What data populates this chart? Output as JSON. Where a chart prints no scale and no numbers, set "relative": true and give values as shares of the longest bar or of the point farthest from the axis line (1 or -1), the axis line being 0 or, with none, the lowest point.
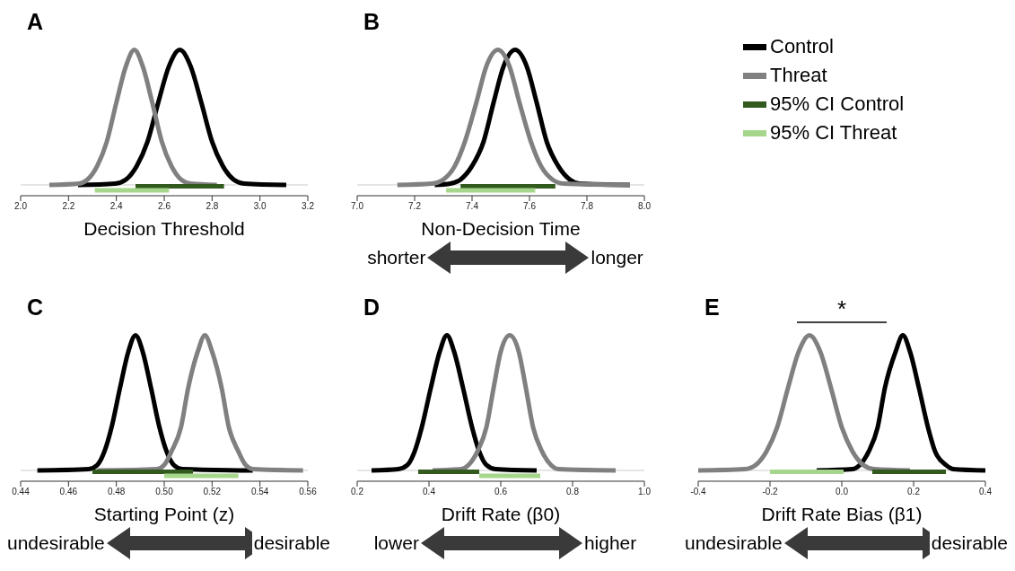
{
  "chart_data": [
    {
      "type": "line",
      "title": "A",
      "xlabel": "Decision Threshold",
      "relative": true,
      "xlim": [
        2.0,
        3.2
      ],
      "xticks": [
        {
          "value": 2.0,
          "label": "2.0"
        },
        2.2,
        2.4,
        2.6,
        2.8,
        {
          "value": 3.0,
          "label": "3.0"
        },
        3.2
      ],
      "series": [
        {
          "color": "#000000",
          "x": [
            2.24,
            2.395,
            2.44,
            2.485,
            2.53,
            2.575,
            2.62,
            2.665,
            2.71,
            2.755,
            2.8,
            2.845,
            2.89,
            2.935,
            3.11
          ],
          "values": [
            0,
            0.01,
            0.04,
            0.14,
            0.32,
            0.61,
            0.88,
            1,
            0.88,
            0.61,
            0.32,
            0.14,
            0.04,
            0.01,
            0
          ]
        },
        {
          "color": "#808080",
          "x": [
            2.12,
            2.244,
            2.28,
            2.32,
            2.36,
            2.4,
            2.44,
            2.475,
            2.51,
            2.55,
            2.59,
            2.63,
            2.67,
            2.71,
            2.82
          ],
          "values": [
            0,
            0.01,
            0.04,
            0.14,
            0.32,
            0.61,
            0.88,
            1,
            0.88,
            0.61,
            0.32,
            0.14,
            0.04,
            0.01,
            0
          ]
        },
        {
          "color": "#335a1e",
          "x": [
            2.48,
            2.85
          ],
          "values": [
            -0.01,
            -0.01
          ]
        },
        {
          "color": "#a6d68c",
          "x": [
            2.31,
            2.62
          ],
          "values": [
            -0.04,
            -0.04
          ]
        }
      ]
    },
    {
      "type": "line",
      "title": "B",
      "xlabel": "Non-Decision Time",
      "relative": true,
      "legend": "right",
      "annotations": [
        "shorter",
        "longer"
      ],
      "xlim": [
        7.0,
        8.0
      ],
      "xticks": [
        {
          "value": 7.0,
          "label": "7.0"
        },
        7.2,
        7.4,
        7.6,
        7.8,
        {
          "value": 8.0,
          "label": "8.0"
        }
      ],
      "series": [
        {
          "name": "Control",
          "color": "#000000",
          "x": [
            7.27,
            7.325,
            7.36,
            7.4,
            7.44,
            7.475,
            7.51,
            7.55,
            7.59,
            7.625,
            7.66,
            7.7,
            7.74,
            7.775,
            7.95
          ],
          "values": [
            0,
            0.01,
            0.04,
            0.14,
            0.32,
            0.61,
            0.88,
            1,
            0.88,
            0.61,
            0.32,
            0.14,
            0.04,
            0.01,
            0
          ]
        },
        {
          "name": "Threat",
          "color": "#808080",
          "x": [
            7.14,
            7.26,
            7.3,
            7.34,
            7.375,
            7.415,
            7.45,
            7.49,
            7.53,
            7.565,
            7.605,
            7.64,
            7.68,
            7.72,
            7.95
          ],
          "values": [
            0,
            0.01,
            0.04,
            0.14,
            0.32,
            0.61,
            0.88,
            1,
            0.88,
            0.61,
            0.32,
            0.14,
            0.04,
            0.01,
            0
          ]
        },
        {
          "name": "95% CI Control",
          "color": "#335a1e",
          "x": [
            7.36,
            7.69
          ],
          "values": [
            -0.01,
            -0.01
          ]
        },
        {
          "name": "95% CI Threat",
          "color": "#a6d68c",
          "x": [
            7.31,
            7.62
          ],
          "values": [
            -0.04,
            -0.04
          ]
        }
      ]
    },
    {
      "type": "line",
      "title": "C",
      "xlabel": "Starting Point (z)",
      "relative": true,
      "annotations": [
        "undesirable",
        "desirable"
      ],
      "xlim": [
        0.44,
        0.56
      ],
      "xticks": [
        0.44,
        0.46,
        0.48,
        {
          "value": 0.5,
          "label": "0.50"
        },
        0.52,
        0.54,
        0.56
      ],
      "series": [
        {
          "color": "#000000",
          "x": [
            0.447,
            0.4685,
            0.472,
            0.475,
            0.478,
            0.4815,
            0.485,
            0.488,
            0.491,
            0.4945,
            0.498,
            0.501,
            0.504,
            0.5075,
            0.537
          ],
          "values": [
            0,
            0.01,
            0.04,
            0.14,
            0.32,
            0.61,
            0.88,
            1,
            0.88,
            0.61,
            0.32,
            0.14,
            0.04,
            0.01,
            0
          ]
        },
        {
          "color": "#808080",
          "x": [
            0.472,
            0.497,
            0.5,
            0.503,
            0.507,
            0.51,
            0.514,
            0.517,
            0.52,
            0.524,
            0.527,
            0.531,
            0.534,
            0.537,
            0.558
          ],
          "values": [
            0,
            0.01,
            0.04,
            0.14,
            0.32,
            0.61,
            0.88,
            1,
            0.88,
            0.61,
            0.32,
            0.14,
            0.04,
            0.01,
            0
          ]
        },
        {
          "color": "#335a1e",
          "x": [
            0.47,
            0.512
          ],
          "values": [
            -0.01,
            -0.01
          ]
        },
        {
          "color": "#a6d68c",
          "x": [
            0.5,
            0.531
          ],
          "values": [
            -0.04,
            -0.04
          ]
        }
      ]
    },
    {
      "type": "line",
      "title": "D",
      "xlabel": "Drift Rate (β0)",
      "relative": true,
      "annotations": [
        "lower",
        "higher"
      ],
      "xlim": [
        0.2,
        1.0
      ],
      "xticks": [
        0.2,
        0.4,
        0.6,
        0.8,
        {
          "value": 1.0,
          "label": "1.0"
        }
      ],
      "series": [
        {
          "color": "#000000",
          "x": [
            0.24,
            0.315,
            0.34,
            0.36,
            0.38,
            0.405,
            0.43,
            0.45,
            0.47,
            0.495,
            0.52,
            0.54,
            0.56,
            0.585,
            0.7
          ],
          "values": [
            0,
            0.01,
            0.04,
            0.14,
            0.32,
            0.61,
            0.88,
            1,
            0.88,
            0.61,
            0.32,
            0.14,
            0.04,
            0.01,
            0
          ]
        },
        {
          "color": "#808080",
          "x": [
            0.41,
            0.49,
            0.51,
            0.535,
            0.56,
            0.58,
            0.6,
            0.625,
            0.65,
            0.67,
            0.69,
            0.715,
            0.74,
            0.76,
            0.92
          ],
          "values": [
            0,
            0.01,
            0.04,
            0.14,
            0.32,
            0.61,
            0.88,
            1,
            0.88,
            0.61,
            0.32,
            0.14,
            0.04,
            0.01,
            0
          ]
        },
        {
          "color": "#335a1e",
          "x": [
            0.37,
            0.54
          ],
          "values": [
            -0.01,
            -0.01
          ]
        },
        {
          "color": "#a6d68c",
          "x": [
            0.54,
            0.71
          ],
          "values": [
            -0.04,
            -0.04
          ]
        }
      ]
    },
    {
      "type": "line",
      "title": "E",
      "xlabel": "Drift Rate Bias (β1)",
      "relative": true,
      "annotations": [
        "*",
        "undesirable",
        "desirable"
      ],
      "xlim": [
        -0.4,
        0.4
      ],
      "xticks": [
        -0.4,
        -0.2,
        {
          "value": 0,
          "label": "0.0"
        },
        0.2,
        0.4
      ],
      "series": [
        {
          "color": "#000000",
          "x": [
            -0.07,
            0.03,
            0.05,
            0.075,
            0.1,
            0.12,
            0.15,
            0.17,
            0.19,
            0.215,
            0.24,
            0.26,
            0.29,
            0.31,
            0.4
          ],
          "values": [
            0,
            0.01,
            0.04,
            0.14,
            0.32,
            0.61,
            0.88,
            1,
            0.88,
            0.61,
            0.32,
            0.14,
            0.04,
            0.01,
            0
          ]
        },
        {
          "color": "#808080",
          "x": [
            -0.4,
            -0.27,
            -0.24,
            -0.21,
            -0.18,
            -0.15,
            -0.12,
            -0.09,
            -0.06,
            -0.03,
            0,
            0.03,
            0.06,
            0.09,
            0.19
          ],
          "values": [
            0,
            0.01,
            0.04,
            0.14,
            0.32,
            0.61,
            0.88,
            1,
            0.88,
            0.61,
            0.32,
            0.14,
            0.04,
            0.01,
            0
          ]
        },
        {
          "color": "#335a1e",
          "x": [
            0.085,
            0.29
          ],
          "values": [
            -0.01,
            -0.01
          ]
        },
        {
          "color": "#a6d68c",
          "x": [
            -0.2,
            0.005
          ],
          "values": [
            -0.01,
            -0.01
          ]
        }
      ]
    }
  ]
}
